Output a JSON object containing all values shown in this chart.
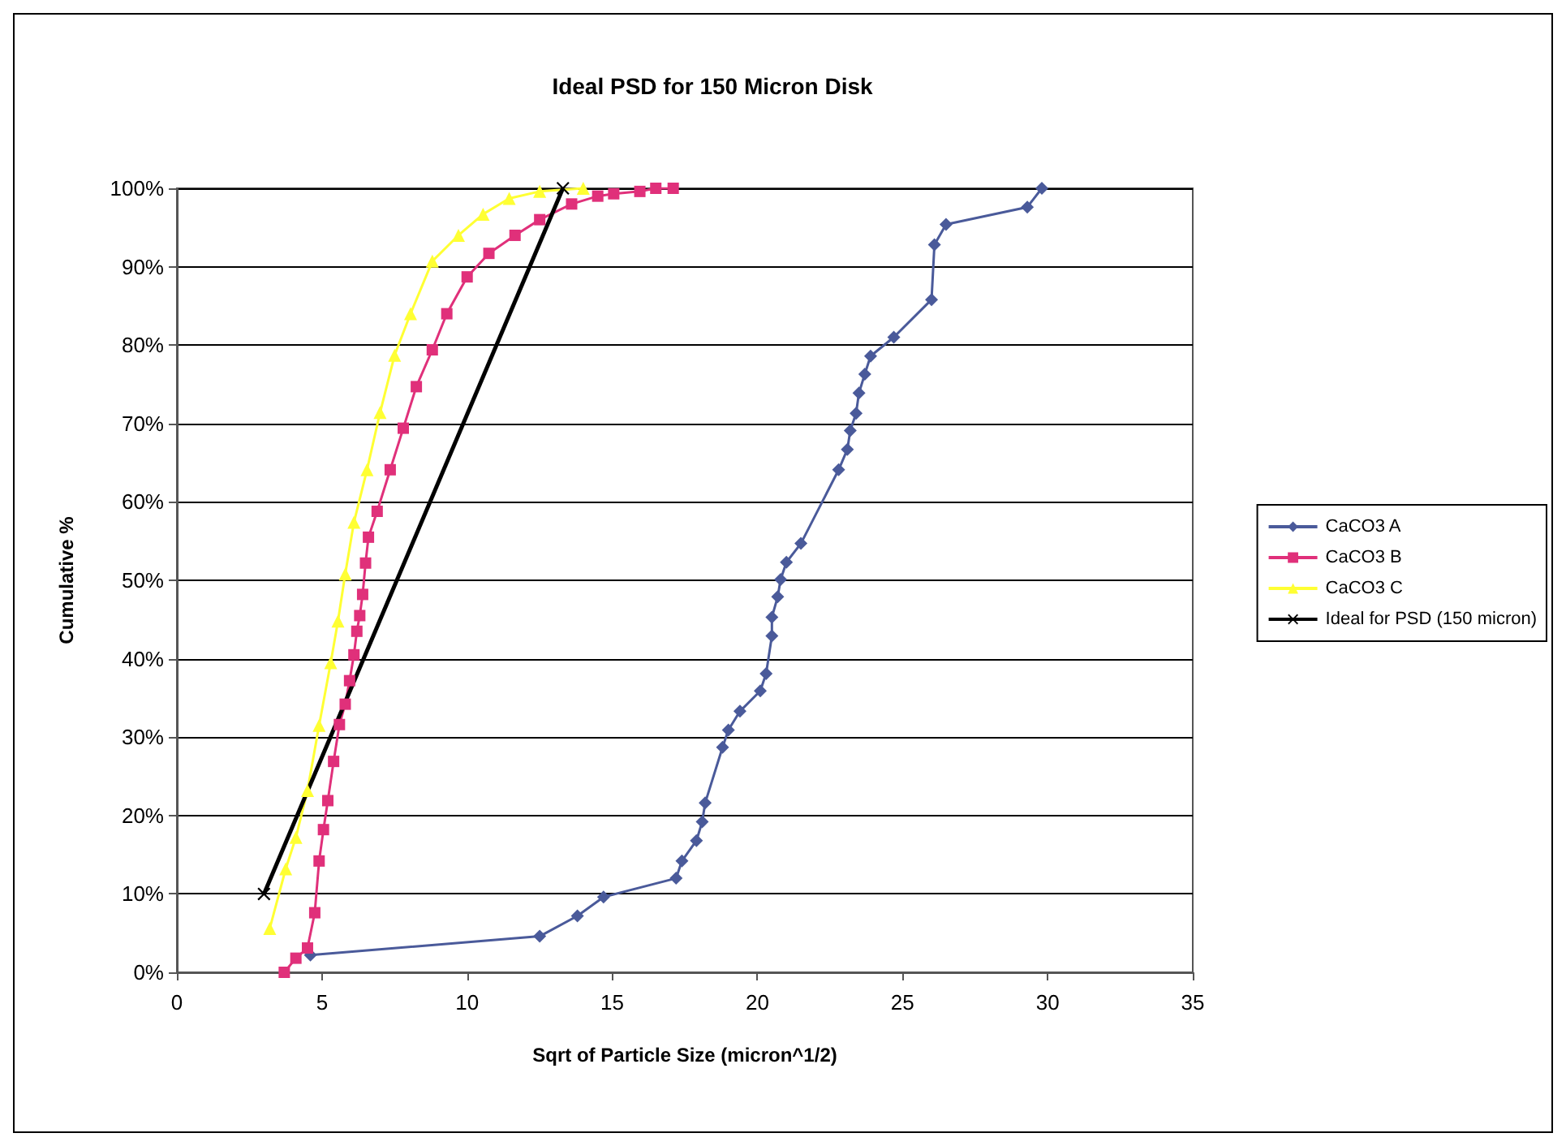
{
  "chart_data": {
    "type": "line",
    "title": "Ideal PSD for 150 Micron Disk",
    "xlabel": "Sqrt of Particle Size (micron^1/2)",
    "ylabel": "Cumulative %",
    "xlim": [
      0,
      35
    ],
    "xticks": [
      0,
      5,
      10,
      15,
      20,
      25,
      30,
      35
    ],
    "ylim": [
      0,
      100
    ],
    "yticks": [
      {
        "value": 0,
        "label": "0%"
      },
      {
        "value": 10,
        "label": "10%"
      },
      {
        "value": 20,
        "label": "20%"
      },
      {
        "value": 30,
        "label": "30%"
      },
      {
        "value": 40,
        "label": "40%"
      },
      {
        "value": 50,
        "label": "50%"
      },
      {
        "value": 60,
        "label": "60%"
      },
      {
        "value": 70,
        "label": "70%"
      },
      {
        "value": 80,
        "label": "80%"
      },
      {
        "value": 90,
        "label": "90%"
      },
      {
        "value": 100,
        "label": "100%"
      }
    ],
    "grid": "y",
    "legend": "right",
    "line_style": "solid",
    "series": [
      {
        "name": "CaCO3 A",
        "color": "#4a5a9a",
        "marker": "diamond",
        "x": [
          4.6,
          12.5,
          13.8,
          14.7,
          17.2,
          17.4,
          17.9,
          18.1,
          18.2,
          18.8,
          19.0,
          19.4,
          20.1,
          20.3,
          20.5,
          20.5,
          20.7,
          20.8,
          21.0,
          21.5,
          22.8,
          23.1,
          23.2,
          23.4,
          23.5,
          23.7,
          23.9,
          24.7,
          26.0,
          26.1,
          26.5,
          29.3,
          29.8
        ],
        "values": [
          2.2,
          4.6,
          7.2,
          9.6,
          12.0,
          14.2,
          16.8,
          19.2,
          21.6,
          28.7,
          30.9,
          33.3,
          35.9,
          38.1,
          42.9,
          45.3,
          47.9,
          50.1,
          52.3,
          54.7,
          64.1,
          66.7,
          69.1,
          71.3,
          73.9,
          76.3,
          78.6,
          81.0,
          85.8,
          92.8,
          95.4,
          97.6,
          100
        ]
      },
      {
        "name": "CaCO3 B",
        "color": "#e0307a",
        "marker": "square",
        "x": [
          3.7,
          4.1,
          4.5,
          4.75,
          4.9,
          5.05,
          5.2,
          5.4,
          5.6,
          5.8,
          5.95,
          6.1,
          6.2,
          6.3,
          6.4,
          6.5,
          6.6,
          6.9,
          7.35,
          7.8,
          8.25,
          8.8,
          9.3,
          10.0,
          10.75,
          11.65,
          12.5,
          13.6,
          14.5,
          15.05,
          15.95,
          16.5,
          17.1
        ],
        "values": [
          0,
          1.8,
          3.1,
          7.6,
          14.2,
          18.2,
          21.9,
          26.9,
          31.6,
          34.2,
          37.2,
          40.5,
          43.5,
          45.5,
          48.2,
          52.2,
          55.5,
          58.8,
          64.1,
          69.4,
          74.7,
          79.4,
          84.0,
          88.7,
          91.7,
          94.0,
          96.0,
          98.0,
          99.0,
          99.3,
          99.6,
          100,
          100
        ]
      },
      {
        "name": "CaCO3 C",
        "color": "#ffff33",
        "marker": "triangle",
        "x": [
          3.2,
          3.75,
          4.1,
          4.5,
          4.9,
          5.3,
          5.55,
          5.8,
          6.1,
          6.55,
          7.0,
          7.5,
          8.05,
          8.8,
          9.7,
          10.55,
          11.45,
          12.5,
          14.0
        ],
        "values": [
          5.6,
          13.2,
          17.2,
          23.2,
          31.5,
          39.5,
          44.8,
          50.8,
          57.4,
          64.1,
          71.4,
          78.7,
          84.0,
          90.7,
          94.0,
          96.7,
          98.7,
          99.6,
          100
        ]
      },
      {
        "name": "Ideal for PSD (150 micron)",
        "color": "#000000",
        "marker": "cross",
        "x": [
          3.0,
          13.3
        ],
        "values": [
          10,
          100
        ]
      }
    ]
  }
}
